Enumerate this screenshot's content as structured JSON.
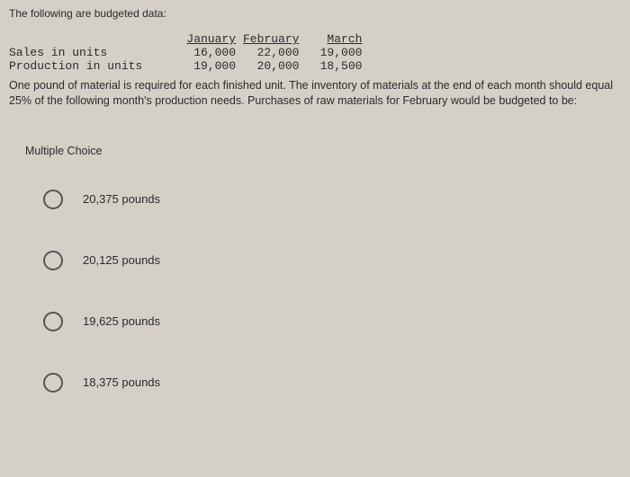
{
  "intro_text": "The following are budgeted data:",
  "table": {
    "columns": [
      "",
      "January",
      "February",
      "March"
    ],
    "rows": [
      {
        "label": "Sales in units",
        "values": [
          "16,000",
          "22,000",
          "19,000"
        ]
      },
      {
        "label": "Production in units",
        "values": [
          "19,000",
          "20,000",
          "18,500"
        ]
      }
    ]
  },
  "question_text": "One pound of material is required for each finished unit. The inventory of materials at the end of each month should equal 25% of the following month's production needs. Purchases of raw materials for February would be budgeted to be:",
  "mc_label": "Multiple Choice",
  "choices": [
    {
      "label": "20,375 pounds"
    },
    {
      "label": "20,125 pounds"
    },
    {
      "label": "19,625 pounds"
    },
    {
      "label": "18,375 pounds"
    }
  ],
  "colors": {
    "background": "#d4d0c8",
    "text": "#2b2b2b",
    "radio_border": "#555555"
  }
}
